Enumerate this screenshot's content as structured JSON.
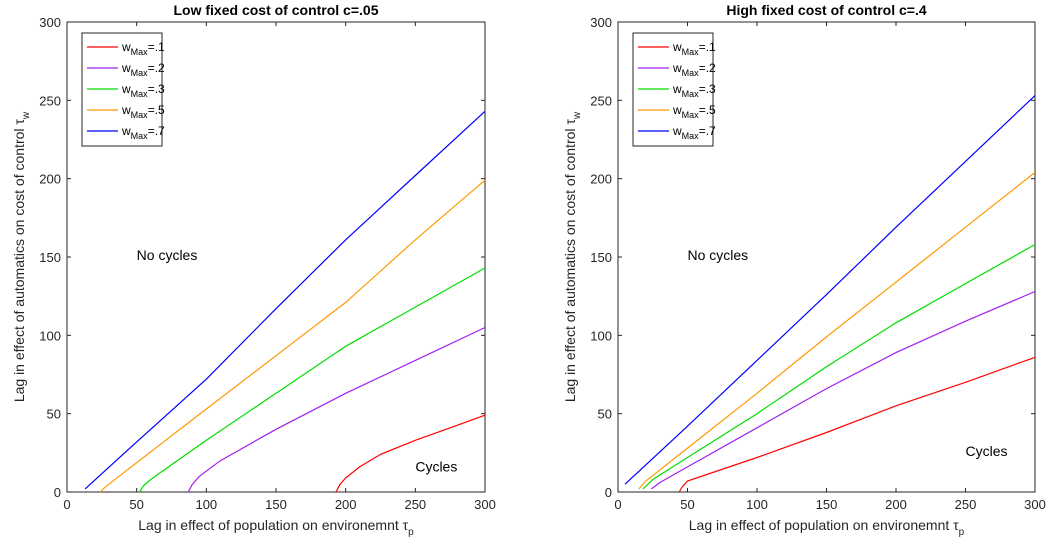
{
  "chart_data": [
    {
      "type": "line",
      "title": "Low fixed cost of control c=.05",
      "xlabel": "Lag in effect of population on environemnt",
      "xlabel_symbol": "τ",
      "xlabel_sub": "p",
      "ylabel": "Lag in effect of automatics on cost of control",
      "ylabel_symbol": "τ",
      "ylabel_sub": "w",
      "xlim": [
        0,
        300
      ],
      "ylim": [
        0,
        300
      ],
      "xticks": [
        0,
        50,
        100,
        150,
        200,
        250,
        300
      ],
      "yticks": [
        0,
        50,
        100,
        150,
        200,
        250,
        300
      ],
      "grid": false,
      "legend_position": "top-left",
      "annotations": [
        {
          "text": "No cycles",
          "x": 50,
          "y": 148
        },
        {
          "text": "Cycles",
          "x": 250,
          "y": 13
        }
      ],
      "series": [
        {
          "name": "w",
          "name_sub": "Max",
          "name_suffix": "=.1",
          "color": "#ff0000",
          "points": [
            [
              193,
              0
            ],
            [
              196,
              5
            ],
            [
              200,
              9
            ],
            [
              210,
              16
            ],
            [
              225,
              24
            ],
            [
              250,
              33
            ],
            [
              275,
              41
            ],
            [
              300,
              49
            ]
          ]
        },
        {
          "name": "w",
          "name_sub": "Max",
          "name_suffix": "=.2",
          "color": "#a020f0",
          "points": [
            [
              87,
              0
            ],
            [
              90,
              5
            ],
            [
              95,
              10
            ],
            [
              110,
              20
            ],
            [
              150,
              40
            ],
            [
              200,
              63
            ],
            [
              250,
              84
            ],
            [
              300,
              105
            ]
          ]
        },
        {
          "name": "w",
          "name_sub": "Max",
          "name_suffix": "=.3",
          "color": "#00dd00",
          "points": [
            [
              52,
              0
            ],
            [
              55,
              4
            ],
            [
              60,
              8
            ],
            [
              100,
              33
            ],
            [
              150,
              63
            ],
            [
              200,
              93
            ],
            [
              250,
              118
            ],
            [
              300,
              143
            ]
          ]
        },
        {
          "name": "w",
          "name_sub": "Max",
          "name_suffix": "=.5",
          "color": "#ff9900",
          "points": [
            [
              24,
              0
            ],
            [
              26,
              2
            ],
            [
              30,
              5
            ],
            [
              100,
              53
            ],
            [
              150,
              87
            ],
            [
              200,
              121
            ],
            [
              250,
              161
            ],
            [
              300,
              199
            ]
          ]
        },
        {
          "name": "w",
          "name_sub": "Max",
          "name_suffix": "=.7",
          "color": "#0000ff",
          "points": [
            [
              13,
              2
            ],
            [
              50,
              32
            ],
            [
              100,
              72
            ],
            [
              150,
              117
            ],
            [
              200,
              161
            ],
            [
              250,
              202
            ],
            [
              300,
              243
            ]
          ]
        }
      ]
    },
    {
      "type": "line",
      "title": "High fixed cost of control c=.4",
      "xlabel": "Lag in effect of population on environemnt",
      "xlabel_symbol": "τ",
      "xlabel_sub": "p",
      "ylabel": "Lag in effect of automatics on cost of control",
      "ylabel_symbol": "τ",
      "ylabel_sub": "w",
      "xlim": [
        0,
        300
      ],
      "ylim": [
        0,
        300
      ],
      "xticks": [
        0,
        50,
        100,
        150,
        200,
        250,
        300
      ],
      "yticks": [
        0,
        50,
        100,
        150,
        200,
        250,
        300
      ],
      "grid": false,
      "legend_position": "top-left",
      "annotations": [
        {
          "text": "No cycles",
          "x": 50,
          "y": 148
        },
        {
          "text": "Cycles",
          "x": 250,
          "y": 23
        }
      ],
      "series": [
        {
          "name": "w",
          "name_sub": "Max",
          "name_suffix": "=.1",
          "color": "#ff0000",
          "points": [
            [
              44,
              0
            ],
            [
              46,
              3
            ],
            [
              50,
              7
            ],
            [
              100,
              22
            ],
            [
              150,
              38
            ],
            [
              200,
              55
            ],
            [
              250,
              70
            ],
            [
              300,
              86
            ]
          ]
        },
        {
          "name": "w",
          "name_sub": "Max",
          "name_suffix": "=.2",
          "color": "#a020f0",
          "points": [
            [
              24,
              2
            ],
            [
              30,
              6
            ],
            [
              50,
              16
            ],
            [
              100,
              41
            ],
            [
              150,
              66
            ],
            [
              200,
              89
            ],
            [
              250,
              109
            ],
            [
              300,
              128
            ]
          ]
        },
        {
          "name": "w",
          "name_sub": "Max",
          "name_suffix": "=.3",
          "color": "#00dd00",
          "points": [
            [
              18,
              2
            ],
            [
              25,
              8
            ],
            [
              50,
              22
            ],
            [
              100,
              50
            ],
            [
              150,
              80
            ],
            [
              200,
              108
            ],
            [
              250,
              133
            ],
            [
              300,
              158
            ]
          ]
        },
        {
          "name": "w",
          "name_sub": "Max",
          "name_suffix": "=.5",
          "color": "#ff9900",
          "points": [
            [
              15,
              2
            ],
            [
              20,
              7
            ],
            [
              50,
              28
            ],
            [
              100,
              63
            ],
            [
              150,
              99
            ],
            [
              200,
              134
            ],
            [
              250,
              169
            ],
            [
              300,
              204
            ]
          ]
        },
        {
          "name": "w",
          "name_sub": "Max",
          "name_suffix": "=.7",
          "color": "#0000ff",
          "points": [
            [
              5,
              5
            ],
            [
              50,
              42
            ],
            [
              100,
              84
            ],
            [
              150,
              126
            ],
            [
              200,
              169
            ],
            [
              250,
              211
            ],
            [
              300,
              253
            ]
          ]
        }
      ]
    }
  ]
}
